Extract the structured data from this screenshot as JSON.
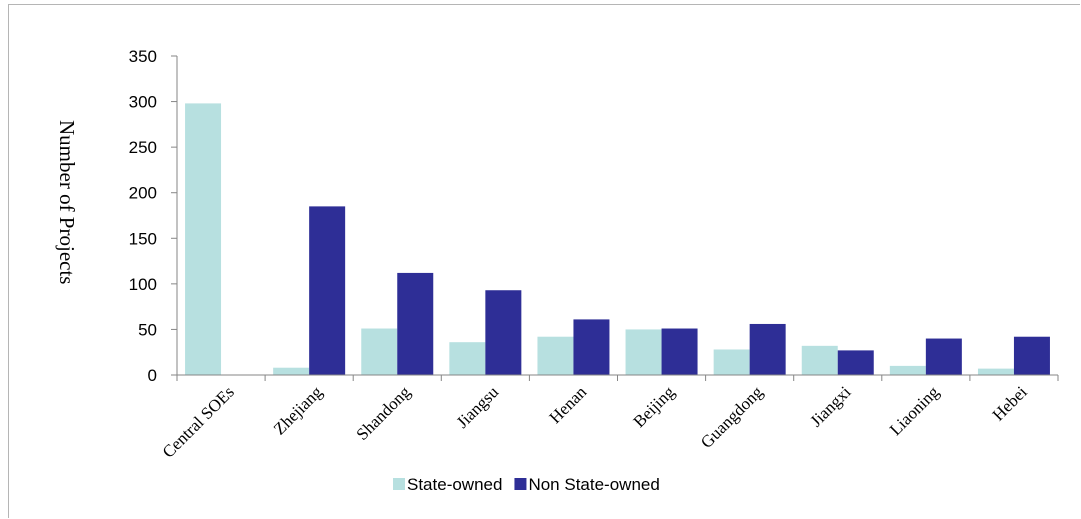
{
  "chart_data": {
    "type": "bar",
    "title": "",
    "xlabel": "",
    "ylabel": "Number of Projects",
    "ylim": [
      0,
      350
    ],
    "yticks": [
      0,
      50,
      100,
      150,
      200,
      250,
      300,
      350
    ],
    "categories": [
      "Central SOEs",
      "Zhejiang",
      "Shandong",
      "Jiangsu",
      "Henan",
      "Beijing",
      "Guangdong",
      "Jiangxi",
      "Liaoning",
      "Hebei"
    ],
    "series": [
      {
        "name": "State-owned",
        "color": "#b7e0e0",
        "values": [
          298,
          8,
          51,
          36,
          42,
          50,
          28,
          32,
          10,
          7
        ]
      },
      {
        "name": "Non State-owned",
        "color": "#2e2e96",
        "values": [
          0,
          185,
          112,
          93,
          61,
          51,
          56,
          27,
          40,
          42
        ]
      }
    ],
    "grid": false,
    "legend_position": "bottom"
  }
}
